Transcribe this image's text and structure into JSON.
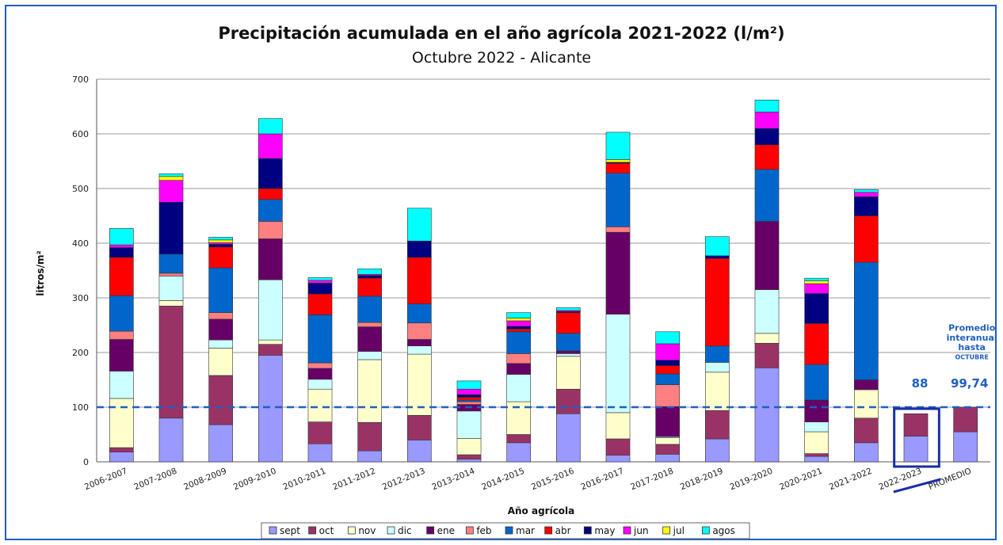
{
  "chart_data": {
    "type": "bar",
    "stacked": true,
    "title": "Precipitación acumulada en el año agrícola 2021-2022 (l/m²)",
    "subtitle": "Octubre 2022 - Alicante",
    "xlabel": "Año agrícola",
    "ylabel": "litros/m²",
    "ylim": [
      0,
      700
    ],
    "yticks": [
      0,
      100,
      200,
      300,
      400,
      500,
      600,
      700
    ],
    "grid": true,
    "legend_position": "bottom",
    "categories": [
      "2006-2007",
      "2007-2008",
      "2008-2009",
      "2009-2010",
      "2010-2011",
      "2011-2012",
      "2012-2013",
      "2013-2014",
      "2014-2015",
      "2015-2016",
      "2016-2017",
      "2017-2018",
      "2018-2019",
      "2019-2020",
      "2020-2021",
      "2021-2022",
      "2022-2023",
      "PROMEDIO"
    ],
    "series": [
      {
        "name": "sept",
        "color": "#9999ff",
        "values": [
          18,
          80,
          68,
          195,
          33,
          20,
          40,
          5,
          35,
          88,
          12,
          14,
          42,
          172,
          10,
          35,
          47,
          55
        ]
      },
      {
        "name": "oct",
        "color": "#993366",
        "values": [
          8,
          205,
          90,
          20,
          40,
          52,
          45,
          8,
          15,
          45,
          30,
          18,
          52,
          45,
          5,
          45,
          41,
          45
        ]
      },
      {
        "name": "nov",
        "color": "#ffffcc",
        "values": [
          90,
          10,
          50,
          8,
          60,
          115,
          112,
          30,
          60,
          60,
          48,
          12,
          70,
          18,
          40,
          52,
          0,
          0
        ]
      },
      {
        "name": "dic",
        "color": "#ccffff",
        "values": [
          50,
          45,
          15,
          110,
          18,
          15,
          15,
          50,
          50,
          5,
          180,
          2,
          18,
          80,
          18,
          0,
          0,
          0
        ]
      },
      {
        "name": "ene",
        "color": "#660066",
        "values": [
          58,
          0,
          38,
          75,
          20,
          45,
          12,
          12,
          20,
          5,
          150,
          55,
          0,
          125,
          40,
          18,
          0,
          0
        ]
      },
      {
        "name": "feb",
        "color": "#ff8080",
        "values": [
          15,
          5,
          12,
          32,
          10,
          8,
          30,
          5,
          18,
          0,
          10,
          40,
          0,
          0,
          0,
          0,
          0,
          0
        ]
      },
      {
        "name": "mar",
        "color": "#0066cc",
        "values": [
          65,
          35,
          82,
          40,
          88,
          48,
          35,
          3,
          40,
          32,
          98,
          20,
          30,
          95,
          65,
          215,
          0,
          0
        ]
      },
      {
        "name": "abr",
        "color": "#ff0000",
        "values": [
          70,
          0,
          38,
          20,
          38,
          33,
          85,
          5,
          5,
          38,
          18,
          15,
          160,
          45,
          75,
          85,
          0,
          0
        ]
      },
      {
        "name": "may",
        "color": "#000080",
        "values": [
          18,
          95,
          5,
          55,
          20,
          5,
          30,
          5,
          5,
          2,
          2,
          10,
          5,
          30,
          55,
          35,
          0,
          0
        ]
      },
      {
        "name": "jun",
        "color": "#ff00ff",
        "values": [
          5,
          40,
          3,
          45,
          5,
          2,
          0,
          10,
          10,
          2,
          0,
          30,
          0,
          30,
          18,
          8,
          0,
          0
        ]
      },
      {
        "name": "jul",
        "color": "#ffff00",
        "values": [
          0,
          7,
          5,
          0,
          0,
          0,
          0,
          0,
          5,
          0,
          5,
          0,
          0,
          0,
          5,
          0,
          0,
          0
        ]
      },
      {
        "name": "agos",
        "color": "#00ffff",
        "values": [
          30,
          5,
          5,
          28,
          5,
          10,
          60,
          15,
          10,
          5,
          50,
          22,
          35,
          22,
          5,
          5,
          0,
          0
        ]
      }
    ],
    "reference_line": {
      "value": 100,
      "style": "dashed",
      "color": "#1f5fbf"
    },
    "annotations": {
      "current_value": "88",
      "average_value": "99,74",
      "average_label": [
        "Promedio",
        "interanual",
        "hasta",
        "OCTUBRE"
      ],
      "highlight_category": "2022-2023"
    }
  }
}
